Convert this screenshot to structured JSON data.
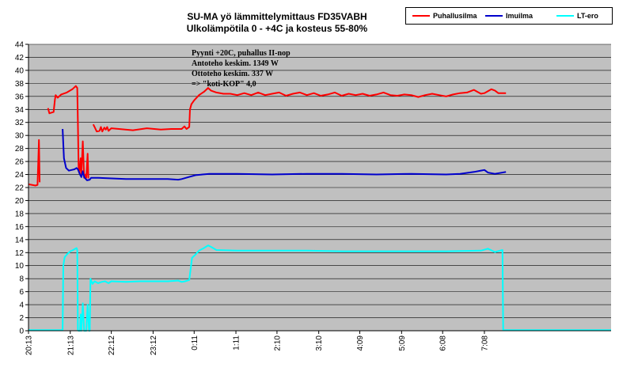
{
  "chart_data": {
    "type": "line",
    "title_lines": [
      "SU-MA yö lämmittelymittaus FD35VABH",
      "Ulkolämpötila 0 - +4C ja kosteus 55-80%"
    ],
    "annotation_lines": [
      "Pyynti +20C, puhallus II-nop",
      "Antoteho keskim. 1349 W",
      "Ottoteho keskim. 337 W",
      "=> \"koti-KOP\" 4,0"
    ],
    "x_tick_labels": [
      "20:13",
      "21:13",
      "22:12",
      "23:12",
      "0:11",
      "1:11",
      "2:10",
      "3:10",
      "4:09",
      "5:09",
      "6:08",
      "7:08"
    ],
    "x_tick_minutes": [
      0,
      60,
      119,
      179,
      238,
      298,
      357,
      417,
      476,
      536,
      595,
      655
    ],
    "x_range_minutes": [
      0,
      837
    ],
    "ylim": [
      0,
      44
    ],
    "y_ticks": [
      0,
      2,
      4,
      6,
      8,
      10,
      12,
      14,
      16,
      18,
      20,
      22,
      24,
      26,
      28,
      30,
      32,
      34,
      36,
      38,
      40,
      42,
      44
    ],
    "grid": true,
    "legend_position": "top-right",
    "series": [
      {
        "name": "Puhallusilma",
        "color": "#ff0000",
        "points": [
          [
            0,
            22.5
          ],
          [
            10,
            22.3
          ],
          [
            13,
            22.4
          ],
          [
            15,
            29.3
          ],
          [
            16,
            22.8
          ],
          [
            17,
            null
          ],
          [
            28,
            34.2
          ],
          [
            30,
            33.4
          ],
          [
            36,
            33.6
          ],
          [
            38,
            35.5
          ],
          [
            39,
            36.2
          ],
          [
            42,
            35.8
          ],
          [
            47,
            36.3
          ],
          [
            55,
            36.6
          ],
          [
            63,
            37.1
          ],
          [
            68,
            37.6
          ],
          [
            70,
            37.3
          ],
          [
            71,
            32
          ],
          [
            72,
            25
          ],
          [
            73,
            24.2
          ],
          [
            75,
            26.5
          ],
          [
            76,
            24
          ],
          [
            78,
            29.1
          ],
          [
            80,
            23.5
          ],
          [
            82,
            24
          ],
          [
            83,
            23.5
          ],
          [
            85,
            27.2
          ],
          [
            86,
            23.4
          ],
          [
            88,
            null
          ],
          [
            93,
            31.7
          ],
          [
            95,
            31.3
          ],
          [
            98,
            30.6
          ],
          [
            102,
            30.7
          ],
          [
            104,
            31.3
          ],
          [
            106,
            30.6
          ],
          [
            109,
            31.2
          ],
          [
            111,
            30.9
          ],
          [
            113,
            31.3
          ],
          [
            115,
            30.7
          ],
          [
            119,
            31.1
          ],
          [
            130,
            31
          ],
          [
            150,
            30.8
          ],
          [
            170,
            31.1
          ],
          [
            190,
            30.9
          ],
          [
            205,
            31
          ],
          [
            220,
            31
          ],
          [
            224,
            31.4
          ],
          [
            227,
            31
          ],
          [
            231,
            31.3
          ],
          [
            232,
            34
          ],
          [
            234,
            34.8
          ],
          [
            238,
            35.4
          ],
          [
            245,
            36.2
          ],
          [
            252,
            36.7
          ],
          [
            258,
            37.3
          ],
          [
            262,
            36.9
          ],
          [
            270,
            36.6
          ],
          [
            280,
            36.4
          ],
          [
            290,
            36.4
          ],
          [
            300,
            36.2
          ],
          [
            310,
            36.5
          ],
          [
            320,
            36.2
          ],
          [
            330,
            36.6
          ],
          [
            340,
            36.2
          ],
          [
            350,
            36.4
          ],
          [
            360,
            36.6
          ],
          [
            370,
            36.1
          ],
          [
            380,
            36.4
          ],
          [
            390,
            36.6
          ],
          [
            400,
            36.2
          ],
          [
            410,
            36.5
          ],
          [
            420,
            36.1
          ],
          [
            430,
            36.3
          ],
          [
            440,
            36.6
          ],
          [
            450,
            36.1
          ],
          [
            460,
            36.4
          ],
          [
            470,
            36.2
          ],
          [
            480,
            36.4
          ],
          [
            490,
            36.1
          ],
          [
            500,
            36.3
          ],
          [
            510,
            36.6
          ],
          [
            520,
            36.2
          ],
          [
            530,
            36.1
          ],
          [
            540,
            36.3
          ],
          [
            550,
            36.2
          ],
          [
            560,
            35.9
          ],
          [
            570,
            36.2
          ],
          [
            580,
            36.4
          ],
          [
            590,
            36.2
          ],
          [
            600,
            36
          ],
          [
            610,
            36.3
          ],
          [
            620,
            36.5
          ],
          [
            630,
            36.6
          ],
          [
            640,
            37
          ],
          [
            645,
            36.7
          ],
          [
            650,
            36.4
          ],
          [
            655,
            36.5
          ],
          [
            660,
            36.8
          ],
          [
            665,
            37.1
          ],
          [
            670,
            36.9
          ],
          [
            675,
            36.5
          ],
          [
            680,
            36.5
          ],
          [
            686,
            36.5
          ]
        ]
      },
      {
        "name": "Imuilma",
        "color": "#0000cc",
        "points": [
          [
            49,
            31
          ],
          [
            51,
            26.5
          ],
          [
            54,
            25
          ],
          [
            58,
            24.6
          ],
          [
            62,
            24.7
          ],
          [
            66,
            24.8
          ],
          [
            69,
            25
          ],
          [
            71,
            24.8
          ],
          [
            74,
            24
          ],
          [
            76,
            23.6
          ],
          [
            78,
            24.5
          ],
          [
            80,
            23.6
          ],
          [
            84,
            23.1
          ],
          [
            88,
            23.2
          ],
          [
            90,
            23.5
          ],
          [
            100,
            23.5
          ],
          [
            120,
            23.4
          ],
          [
            140,
            23.3
          ],
          [
            160,
            23.3
          ],
          [
            180,
            23.3
          ],
          [
            200,
            23.3
          ],
          [
            215,
            23.2
          ],
          [
            220,
            23.3
          ],
          [
            230,
            23.6
          ],
          [
            240,
            23.9
          ],
          [
            250,
            24
          ],
          [
            260,
            24.1
          ],
          [
            280,
            24.1
          ],
          [
            300,
            24.1
          ],
          [
            350,
            24
          ],
          [
            400,
            24.1
          ],
          [
            450,
            24.1
          ],
          [
            500,
            24
          ],
          [
            550,
            24.1
          ],
          [
            600,
            24
          ],
          [
            620,
            24.1
          ],
          [
            640,
            24.4
          ],
          [
            650,
            24.6
          ],
          [
            655,
            24.7
          ],
          [
            660,
            24.3
          ],
          [
            670,
            24.1
          ],
          [
            686,
            24.4
          ]
        ]
      },
      {
        "name": "LT-ero",
        "color": "#00ffff",
        "points": [
          [
            0,
            0.1
          ],
          [
            49,
            0.1
          ],
          [
            50,
            10
          ],
          [
            52,
            11.3
          ],
          [
            56,
            11.8
          ],
          [
            60,
            12.2
          ],
          [
            64,
            12.4
          ],
          [
            69,
            12.7
          ],
          [
            70,
            12.4
          ],
          [
            71,
            0.1
          ],
          [
            72,
            0
          ],
          [
            74,
            0
          ],
          [
            75,
            2.5
          ],
          [
            76,
            0
          ],
          [
            78,
            4.2
          ],
          [
            80,
            0
          ],
          [
            83,
            0
          ],
          [
            85,
            4
          ],
          [
            87,
            0
          ],
          [
            88,
            0
          ],
          [
            89,
            8
          ],
          [
            92,
            7.2
          ],
          [
            95,
            7.6
          ],
          [
            100,
            7.3
          ],
          [
            105,
            7.5
          ],
          [
            110,
            7.6
          ],
          [
            115,
            7.3
          ],
          [
            119,
            7.6
          ],
          [
            140,
            7.5
          ],
          [
            160,
            7.6
          ],
          [
            180,
            7.6
          ],
          [
            200,
            7.6
          ],
          [
            215,
            7.7
          ],
          [
            220,
            7.5
          ],
          [
            225,
            7.6
          ],
          [
            231,
            7.8
          ],
          [
            235,
            11.2
          ],
          [
            240,
            11.7
          ],
          [
            245,
            12.3
          ],
          [
            252,
            12.7
          ],
          [
            258,
            13.1
          ],
          [
            262,
            12.9
          ],
          [
            270,
            12.4
          ],
          [
            300,
            12.3
          ],
          [
            350,
            12.3
          ],
          [
            400,
            12.3
          ],
          [
            450,
            12.2
          ],
          [
            500,
            12.2
          ],
          [
            550,
            12.2
          ],
          [
            600,
            12.2
          ],
          [
            650,
            12.3
          ],
          [
            660,
            12.6
          ],
          [
            670,
            12.1
          ],
          [
            681,
            12.4
          ],
          [
            682,
            0.1
          ],
          [
            837,
            0.1
          ]
        ]
      }
    ]
  }
}
